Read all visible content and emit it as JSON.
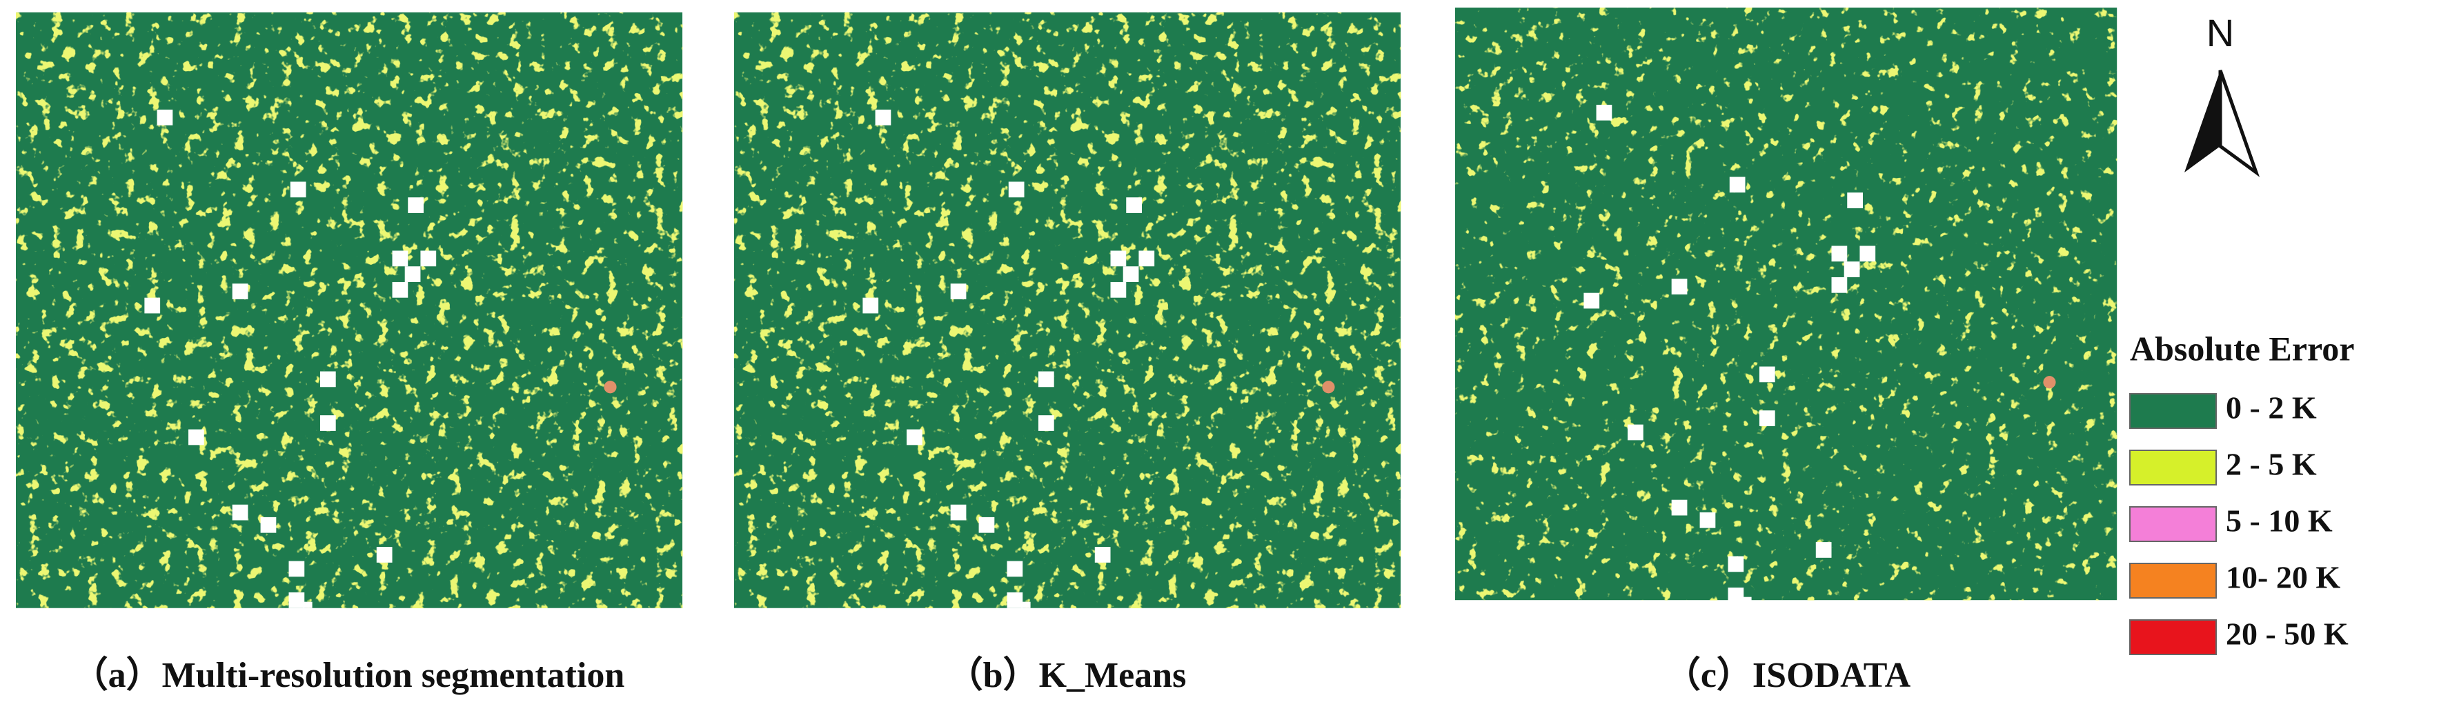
{
  "panels": [
    {
      "caption": "（a）Multi-resolution segmentation"
    },
    {
      "caption": "（b）K_Means"
    },
    {
      "caption": "（c）ISODATA"
    }
  ],
  "north": "N",
  "legend": {
    "title": "Absolute Error",
    "items": [
      {
        "label": "0 - 2 K",
        "color": "#1e7b4e"
      },
      {
        "label": "2 - 5 K",
        "color": "#d6f02a"
      },
      {
        "label": "5 - 10 K",
        "color": "#f47fd8"
      },
      {
        "label": "10- 20 K",
        "color": "#f58220"
      },
      {
        "label": "20 - 50 K",
        "color": "#e8141c"
      }
    ]
  }
}
